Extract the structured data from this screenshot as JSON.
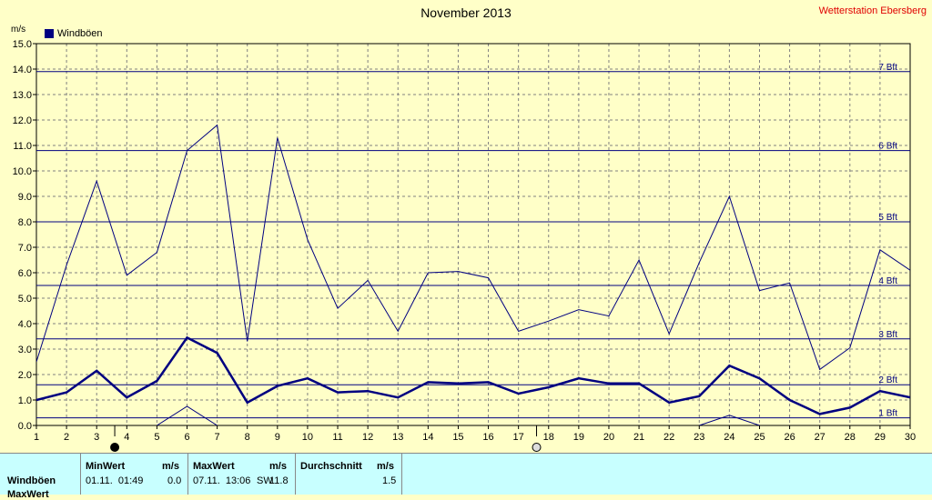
{
  "header": {
    "title": "November 2013",
    "station": "Wetterstation Ebersberg",
    "unit": "m/s"
  },
  "chart_data": {
    "type": "line",
    "title": "November 2013",
    "ylabel": "m/s",
    "xlabel": "",
    "ylim": [
      0,
      15
    ],
    "xlim": [
      1,
      30
    ],
    "y_ticks": [
      "0.0",
      "1.0",
      "2.0",
      "3.0",
      "4.0",
      "5.0",
      "6.0",
      "7.0",
      "8.0",
      "9.0",
      "10.0",
      "11.0",
      "12.0",
      "13.0",
      "14.0",
      "15.0"
    ],
    "x_ticks": [
      "1",
      "2",
      "3",
      "4",
      "5",
      "6",
      "7",
      "8",
      "9",
      "10",
      "11",
      "12",
      "13",
      "14",
      "15",
      "16",
      "17",
      "18",
      "19",
      "20",
      "21",
      "22",
      "23",
      "24",
      "25",
      "26",
      "27",
      "28",
      "29",
      "30"
    ],
    "grid": true,
    "legend": {
      "position": "top-left",
      "entries": [
        "Windböen"
      ]
    },
    "series": [
      {
        "name": "Windböen",
        "role": "max",
        "color": "#000080",
        "x": [
          1,
          2,
          3,
          4,
          5,
          6,
          7,
          8,
          9,
          10,
          11,
          12,
          13,
          14,
          15,
          16,
          17,
          18,
          19,
          20,
          21,
          22,
          23,
          24,
          25,
          26,
          27,
          28,
          29,
          30
        ],
        "values": [
          2.5,
          6.3,
          9.6,
          5.9,
          6.8,
          10.8,
          11.8,
          3.3,
          11.3,
          7.3,
          4.6,
          5.7,
          3.7,
          6.0,
          6.05,
          5.8,
          3.7,
          4.1,
          4.55,
          4.3,
          6.5,
          3.6,
          6.4,
          9.0,
          5.3,
          5.6,
          2.2,
          3.05,
          6.9,
          6.1
        ]
      },
      {
        "role": "avg",
        "color": "#000080",
        "x": [
          1,
          2,
          3,
          4,
          5,
          6,
          7,
          8,
          9,
          10,
          11,
          12,
          13,
          14,
          15,
          16,
          17,
          18,
          19,
          20,
          21,
          22,
          23,
          24,
          25,
          26,
          27,
          28,
          29,
          30
        ],
        "values": [
          1.0,
          1.3,
          2.15,
          1.1,
          1.75,
          3.45,
          2.85,
          0.9,
          1.55,
          1.85,
          1.3,
          1.35,
          1.1,
          1.7,
          1.65,
          1.7,
          1.25,
          1.5,
          1.85,
          1.65,
          1.65,
          0.9,
          1.15,
          2.35,
          1.85,
          1.0,
          0.45,
          0.7,
          1.35,
          1.1
        ]
      },
      {
        "role": "min",
        "color": "#000080",
        "x": [
          5,
          6,
          7,
          23,
          24,
          25
        ],
        "values": [
          0.0,
          0.75,
          0.0,
          0.0,
          0.4,
          0.0
        ]
      }
    ],
    "beaufort_lines": [
      {
        "label": "1 Bft",
        "value": 0.3
      },
      {
        "label": "2 Bft",
        "value": 1.6
      },
      {
        "label": "3 Bft",
        "value": 3.4
      },
      {
        "label": "4 Bft",
        "value": 5.5
      },
      {
        "label": "5 Bft",
        "value": 8.0
      },
      {
        "label": "6 Bft",
        "value": 10.8
      },
      {
        "label": "7 Bft",
        "value": 13.9
      }
    ],
    "moon_markers": [
      {
        "phase": "new-moon",
        "day": 3.6
      },
      {
        "phase": "full-moon",
        "day": 17.6
      }
    ]
  },
  "stats": {
    "row_label": "Windböen",
    "row_label_2": "MaxWert",
    "min": {
      "header": "MinWert",
      "unit": "m/s",
      "datetime": "01.11.  01:49",
      "value": "0.0"
    },
    "max": {
      "header": "MaxWert",
      "unit": "m/s",
      "datetime": "07.11.  13:06",
      "dir": "SW",
      "value": "11.8"
    },
    "avg": {
      "header": "Durchschnitt",
      "unit": "m/s",
      "value": "1.5"
    }
  },
  "colors": {
    "background": "#ffffc8",
    "plot": "#ffffc8",
    "grid": "#808080",
    "series": "#000080",
    "station": "#e00000",
    "stats_bg": "#c8ffff"
  }
}
